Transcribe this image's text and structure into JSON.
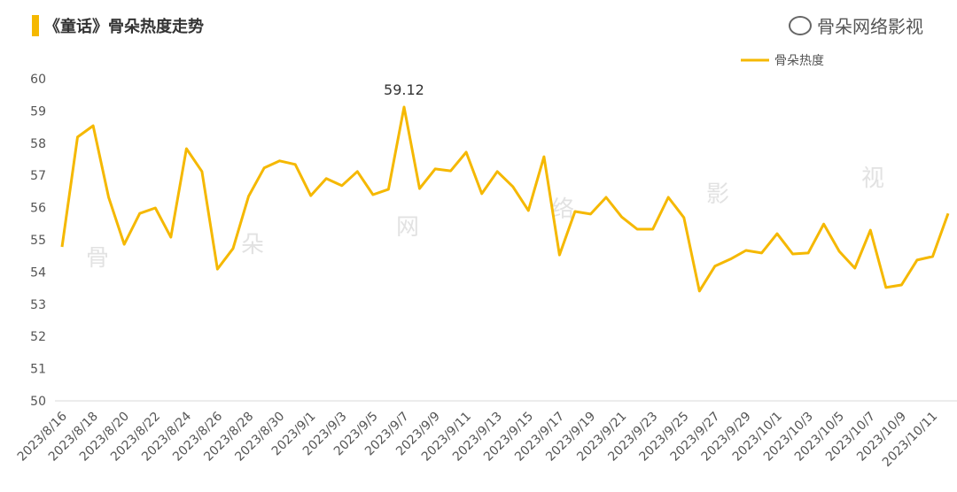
{
  "title": "《童话》骨朵热度走势",
  "accent_color": "#F5B800",
  "watermark_chars": [
    "骨",
    "朵",
    "网",
    "络",
    "影",
    "视"
  ],
  "brand": "骨朵网络影视",
  "chart_data": {
    "type": "line",
    "title": "《童话》骨朵热度走势",
    "xlabel": "",
    "ylabel": "",
    "ylim": [
      50,
      60
    ],
    "yticks": [
      50,
      51,
      52,
      53,
      54,
      55,
      56,
      57,
      58,
      59,
      60
    ],
    "grid": false,
    "legend_position": "top-right",
    "x": [
      "2023/8/16",
      "2023/8/17",
      "2023/8/18",
      "2023/8/19",
      "2023/8/20",
      "2023/8/21",
      "2023/8/22",
      "2023/8/23",
      "2023/8/24",
      "2023/8/25",
      "2023/8/26",
      "2023/8/27",
      "2023/8/28",
      "2023/8/29",
      "2023/8/30",
      "2023/8/31",
      "2023/9/1",
      "2023/9/2",
      "2023/9/3",
      "2023/9/4",
      "2023/9/5",
      "2023/9/6",
      "2023/9/7",
      "2023/9/8",
      "2023/9/9",
      "2023/9/10",
      "2023/9/11",
      "2023/9/12",
      "2023/9/13",
      "2023/9/14",
      "2023/9/15",
      "2023/9/16",
      "2023/9/17",
      "2023/9/18",
      "2023/9/19",
      "2023/9/20",
      "2023/9/21",
      "2023/9/22",
      "2023/9/23",
      "2023/9/24",
      "2023/9/25",
      "2023/9/26",
      "2023/9/27",
      "2023/9/28",
      "2023/9/29",
      "2023/9/30",
      "2023/10/1",
      "2023/10/2",
      "2023/10/3",
      "2023/10/4",
      "2023/10/5",
      "2023/10/6",
      "2023/10/7",
      "2023/10/8",
      "2023/10/9",
      "2023/10/10",
      "2023/10/11",
      "2023/10/12"
    ],
    "xtick_labels": [
      "2023/8/16",
      "2023/8/18",
      "2023/8/20",
      "2023/8/22",
      "2023/8/24",
      "2023/8/26",
      "2023/8/28",
      "2023/8/30",
      "2023/9/1",
      "2023/9/3",
      "2023/9/5",
      "2023/9/7",
      "2023/9/9",
      "2023/9/11",
      "2023/9/13",
      "2023/9/15",
      "2023/9/17",
      "2023/9/19",
      "2023/9/21",
      "2023/9/23",
      "2023/9/25",
      "2023/9/27",
      "2023/9/29",
      "2023/10/1",
      "2023/10/3",
      "2023/10/5",
      "2023/10/7",
      "2023/10/9",
      "2023/10/11"
    ],
    "series": [
      {
        "name": "骨朵热度",
        "color": "#F5B800",
        "values": [
          54.78,
          58.19,
          58.54,
          56.32,
          54.86,
          55.82,
          55.99,
          55.08,
          57.83,
          57.12,
          54.09,
          54.73,
          56.35,
          57.23,
          57.45,
          57.34,
          56.37,
          56.9,
          56.68,
          57.12,
          56.4,
          56.57,
          59.12,
          56.59,
          57.2,
          57.14,
          57.72,
          56.43,
          57.12,
          56.65,
          55.91,
          57.58,
          54.53,
          55.88,
          55.8,
          56.32,
          55.71,
          55.33,
          55.33,
          56.32,
          55.69,
          53.41,
          54.18,
          54.4,
          54.67,
          54.59,
          55.19,
          54.56,
          54.59,
          55.49,
          54.64,
          54.12,
          55.3,
          53.52,
          53.6,
          54.37,
          54.48,
          55.82
        ]
      }
    ],
    "annotations": [
      {
        "x": "2023/9/7",
        "label": "59.12"
      }
    ]
  }
}
